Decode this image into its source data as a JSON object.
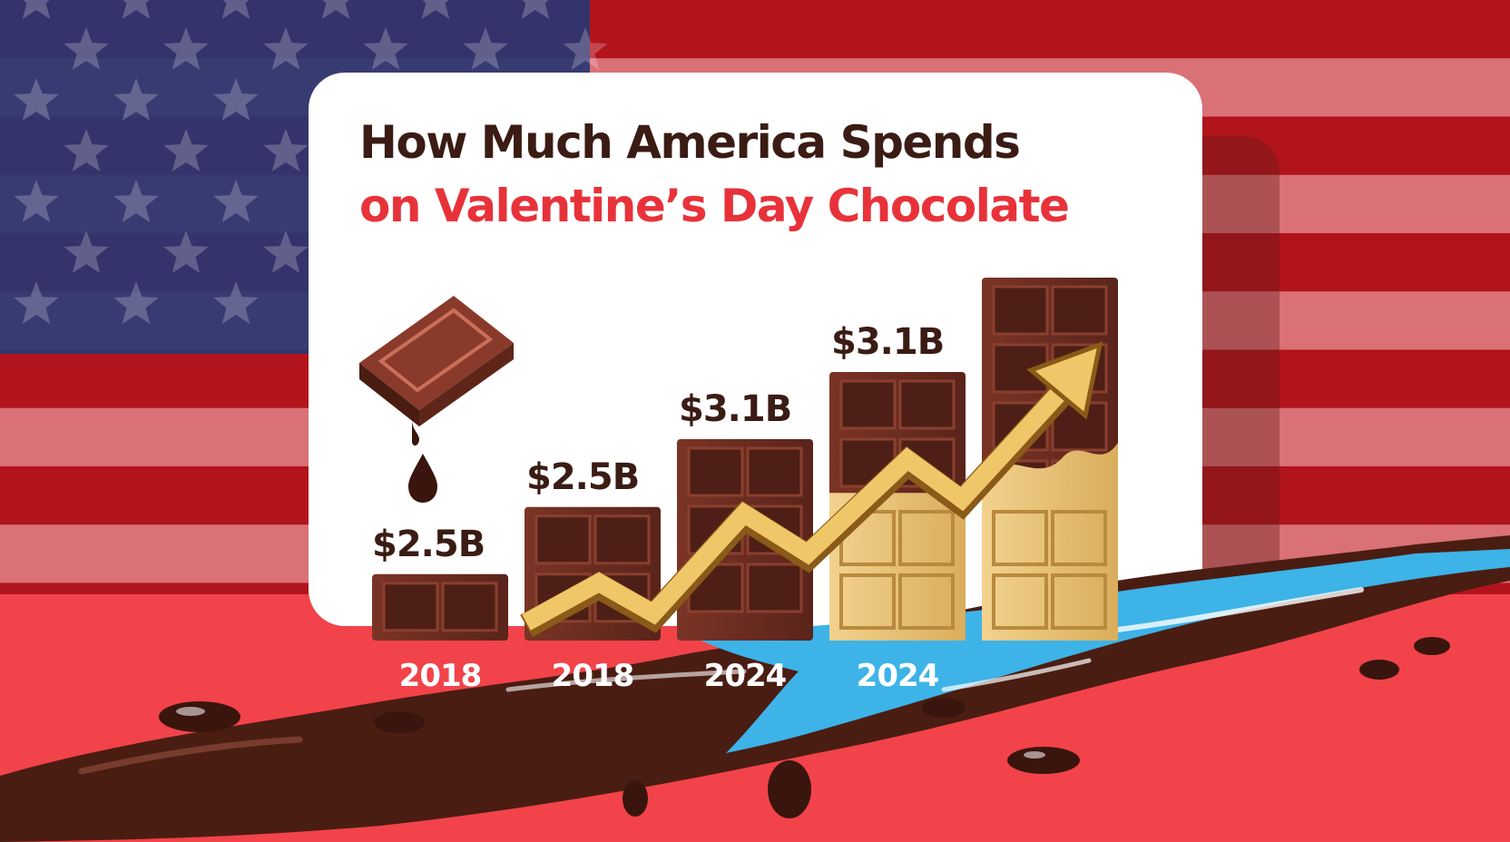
{
  "title_line1": "How Much America Spends",
  "title_line2": "on Valentine’s Day Chocolate",
  "colors": {
    "title_dark": "#3a1c14",
    "title_red": "#e8323a",
    "chocolate": "#6b2c22",
    "white_chocolate": "#e7c27a",
    "flag_red": "#c8202a",
    "flag_blue": "#1f2f6e",
    "river_blue": "#3db3e8"
  },
  "icons": [
    "chocolate-bar-icon",
    "chocolate-drip-icon",
    "trend-arrow-icon",
    "chocolate-river",
    "american-flag-background"
  ],
  "chart_data": {
    "type": "bar",
    "title": "How Much America Spends on Valentine’s Day Chocolate",
    "categories": [
      "2018",
      "2018",
      "2024",
      "2024",
      ""
    ],
    "series": [
      {
        "values": [
          2.5,
          2.5,
          3.1,
          3.1,
          null
        ]
      }
    ],
    "value_labels": [
      "$2.5B",
      "$2.5B",
      "$3.1B",
      "$3.1B",
      ""
    ],
    "unit": "$B",
    "trend_arrow": "upward"
  }
}
